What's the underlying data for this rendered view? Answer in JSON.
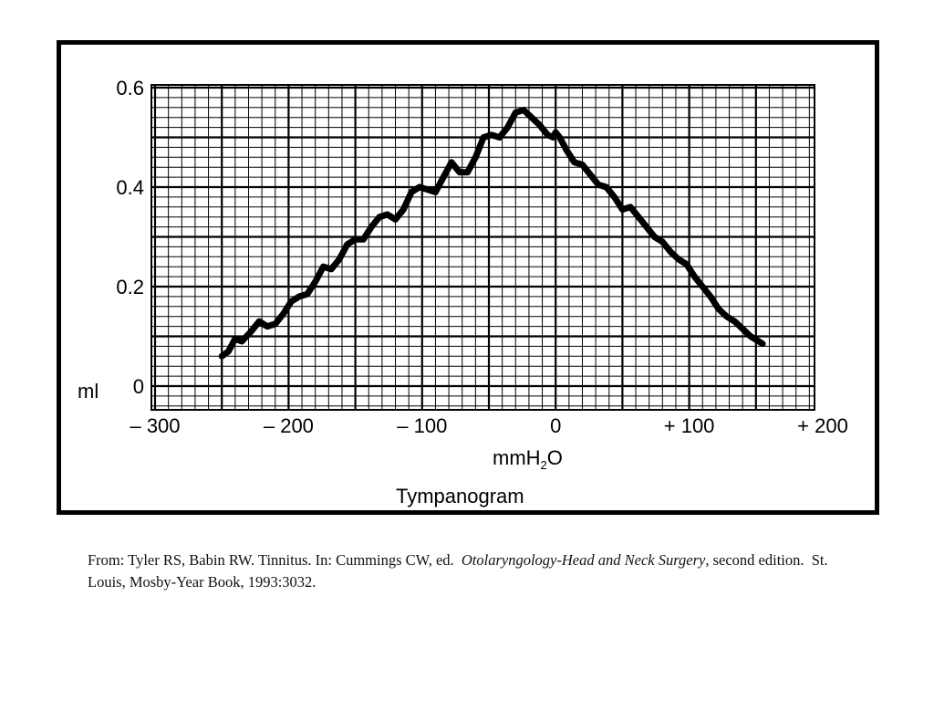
{
  "chart_data": {
    "type": "line",
    "title": "Tympanogram",
    "xlabel_main": "mmH",
    "xlabel_sub": "2",
    "xlabel_tail": "O",
    "ylabel": "ml",
    "xlim": [
      -300,
      200
    ],
    "ylim": [
      0,
      0.6
    ],
    "x_ticks": [
      -300,
      -200,
      -100,
      0,
      100,
      200
    ],
    "x_tick_labels": [
      "– 300",
      "– 200",
      "– 100",
      "0",
      "+ 100",
      "+ 200"
    ],
    "y_ticks": [
      0,
      0.2,
      0.4,
      0.6
    ],
    "y_tick_labels": [
      "0",
      "0.2",
      "0.4",
      "0.6"
    ],
    "grid": true,
    "series": [
      {
        "x": [
          -250,
          -245,
          -240,
          -235,
          -228,
          -222,
          -216,
          -210,
          -204,
          -198,
          -192,
          -186,
          -180,
          -174,
          -168,
          -162,
          -156,
          -150,
          -144,
          -138,
          -132,
          -126,
          -120,
          -114,
          -108,
          -102,
          -96,
          -90,
          -84,
          -78,
          -72,
          -66,
          -60,
          -54,
          -48,
          -42,
          -36,
          -30,
          -24,
          -18,
          -12,
          -6,
          -2,
          0,
          3,
          8,
          14,
          20,
          26,
          32,
          38,
          44,
          50,
          56,
          62,
          68,
          74,
          80,
          86,
          92,
          98,
          104,
          110,
          116,
          122,
          128,
          134,
          140,
          146,
          152,
          155
        ],
        "y": [
          0.06,
          0.07,
          0.095,
          0.09,
          0.11,
          0.13,
          0.12,
          0.125,
          0.145,
          0.17,
          0.18,
          0.185,
          0.21,
          0.24,
          0.235,
          0.255,
          0.285,
          0.295,
          0.295,
          0.32,
          0.34,
          0.345,
          0.335,
          0.355,
          0.39,
          0.4,
          0.395,
          0.39,
          0.42,
          0.45,
          0.43,
          0.43,
          0.46,
          0.5,
          0.505,
          0.5,
          0.52,
          0.55,
          0.555,
          0.54,
          0.525,
          0.505,
          0.5,
          0.51,
          0.5,
          0.475,
          0.45,
          0.445,
          0.425,
          0.405,
          0.4,
          0.38,
          0.355,
          0.36,
          0.34,
          0.32,
          0.3,
          0.29,
          0.27,
          0.255,
          0.245,
          0.22,
          0.2,
          0.18,
          0.155,
          0.14,
          0.13,
          0.115,
          0.1,
          0.09,
          0.085
        ]
      }
    ]
  },
  "citation": {
    "prefix": "From: Tyler RS, Babin RW. Tinnitus. In: Cummings CW, ed.  ",
    "book_title": "Otolaryngology-Head and Neck Surgery",
    "suffix": ", second edition.  St. Louis, Mosby-Year Book, 1993:3032."
  }
}
